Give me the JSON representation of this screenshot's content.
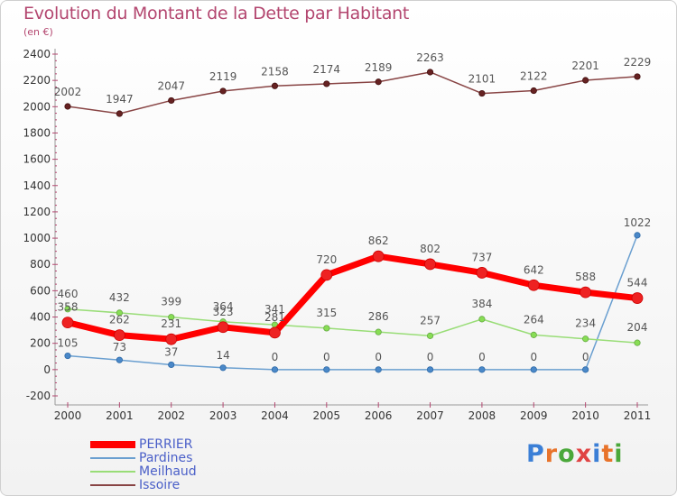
{
  "title": "Evolution du Montant de la Dette par Habitant",
  "subtitle": "(en €)",
  "logo": {
    "text": "Proxiti",
    "letters": [
      "P",
      "r",
      "o",
      "x",
      "i",
      "t",
      "i"
    ],
    "colors": [
      "#3b7fd6",
      "#e8732a",
      "#4aa83a",
      "#e04343",
      "#3b7fd6",
      "#e8732a",
      "#4aa83a"
    ]
  },
  "chart_data": {
    "type": "line",
    "categories": [
      "2000",
      "2001",
      "2002",
      "2003",
      "2004",
      "2005",
      "2006",
      "2007",
      "2008",
      "2009",
      "2010",
      "2011"
    ],
    "ylim": [
      -200,
      2400
    ],
    "yticks": [
      -200,
      0,
      200,
      400,
      600,
      800,
      1000,
      1200,
      1400,
      1600,
      1800,
      2000,
      2200,
      2400
    ],
    "grid": false,
    "legend_position": "bottom-left",
    "series": [
      {
        "name": "PERRIER",
        "color": "#ff0000",
        "values": [
          358,
          262,
          231,
          323,
          281,
          720,
          862,
          802,
          737,
          642,
          588,
          544
        ]
      },
      {
        "name": "Pardines",
        "color": "#6a9fd0",
        "values": [
          105,
          73,
          37,
          14,
          0,
          0,
          0,
          0,
          0,
          0,
          0,
          1022
        ]
      },
      {
        "name": "Meilhaud",
        "color": "#99dd77",
        "values": [
          460,
          432,
          399,
          364,
          341,
          315,
          286,
          257,
          384,
          264,
          234,
          204
        ]
      },
      {
        "name": "Issoire",
        "color": "#884444",
        "values": [
          2002,
          1947,
          2047,
          2119,
          2158,
          2174,
          2189,
          2263,
          2101,
          2122,
          2201,
          2229
        ]
      }
    ]
  }
}
